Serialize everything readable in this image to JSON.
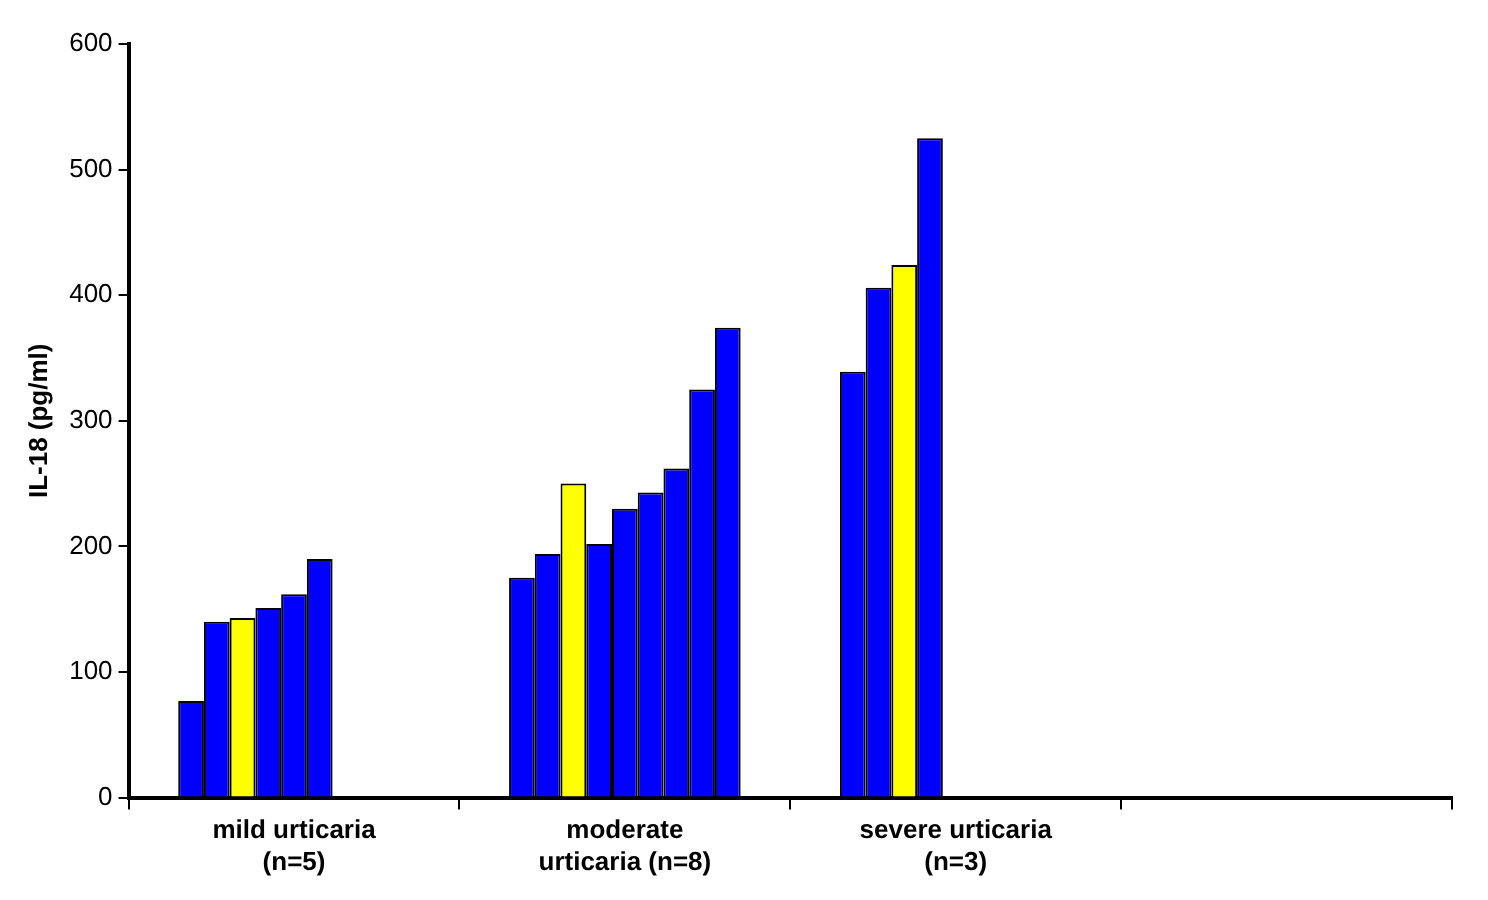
{
  "chart_data": {
    "type": "bar",
    "ylabel": "IL-18 (pg/ml)",
    "categories": [
      "mild urticaria\n(n=5)",
      "moderate\nurticaria (n=8)",
      "severe urticaria\n(n=3)",
      null
    ],
    "series": [
      {
        "colors": [
          "#0000ff",
          "#0000ff",
          "#0000ff",
          "#0000ff"
        ],
        "values": [
          77,
          175,
          339,
          null
        ]
      },
      {
        "colors": [
          "#0000ff",
          "#0000ff",
          "#0000ff",
          "#0000ff"
        ],
        "values": [
          140,
          194,
          406,
          null
        ]
      },
      {
        "colors": [
          "#ffff00",
          "#ffff00",
          "#ffff00",
          "#ffff00"
        ],
        "values": [
          143,
          250,
          424,
          null
        ]
      },
      {
        "colors": [
          "#0000ff",
          "#0000ff",
          "#0000ff",
          "#0000ff"
        ],
        "values": [
          151,
          202,
          525,
          null
        ]
      },
      {
        "colors": [
          "#0000ff",
          "#0000ff",
          "#0000ff",
          "#0000ff"
        ],
        "values": [
          162,
          230,
          null,
          null
        ]
      },
      {
        "colors": [
          "#0000ff",
          "#0000ff",
          "#0000ff",
          "#0000ff"
        ],
        "values": [
          190,
          243,
          null,
          null
        ]
      },
      {
        "colors": [
          "#0000ff",
          "#0000ff",
          "#0000ff",
          "#0000ff"
        ],
        "values": [
          null,
          262,
          null,
          null
        ]
      },
      {
        "colors": [
          "#0000ff",
          "#0000ff",
          "#0000ff",
          "#0000ff"
        ],
        "values": [
          null,
          325,
          null,
          null
        ]
      },
      {
        "colors": [
          "#0000ff",
          "#0000ff",
          "#0000ff",
          "#0000ff"
        ],
        "values": [
          null,
          374,
          null,
          null
        ]
      }
    ],
    "ylim": [
      0,
      600
    ],
    "yticks": [
      0,
      100,
      200,
      300,
      400,
      500,
      600
    ]
  }
}
